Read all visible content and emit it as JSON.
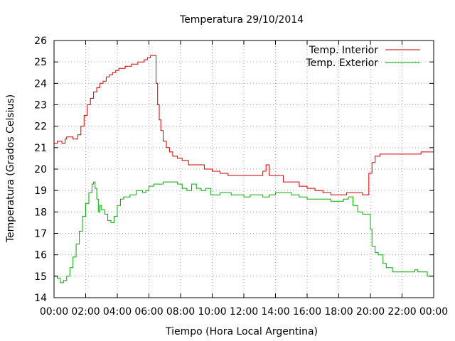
{
  "chart_data": {
    "type": "line",
    "title": "Temperatura 29/10/2014",
    "xlabel": "Tiempo (Hora Local Argentina)",
    "ylabel": "Temperatura (Grados Celsius)",
    "xlim": [
      0,
      24
    ],
    "ylim": [
      14,
      26
    ],
    "x_ticks": [
      "00:00",
      "02:00",
      "04:00",
      "06:00",
      "08:00",
      "10:00",
      "12:00",
      "14:00",
      "16:00",
      "18:00",
      "20:00",
      "22:00",
      "00:00"
    ],
    "y_ticks": [
      "14",
      "15",
      "16",
      "17",
      "18",
      "19",
      "20",
      "21",
      "22",
      "23",
      "24",
      "25",
      "26"
    ],
    "grid": true,
    "legend_position": "top-right",
    "series": [
      {
        "name": "Temp. Interior",
        "color": "#cc0000",
        "x": [
          0,
          0.2,
          0.5,
          0.7,
          0.8,
          1.0,
          1.2,
          1.3,
          1.5,
          1.7,
          1.9,
          2.1,
          2.3,
          2.5,
          2.7,
          2.9,
          3.1,
          3.3,
          3.5,
          3.7,
          3.9,
          4.1,
          4.3,
          4.5,
          4.7,
          4.9,
          5.1,
          5.3,
          5.5,
          5.7,
          5.9,
          6.1,
          6.3,
          6.45,
          6.55,
          6.65,
          6.75,
          6.9,
          7.1,
          7.3,
          7.5,
          7.8,
          8.1,
          8.5,
          9.0,
          9.5,
          10.0,
          10.5,
          11.0,
          11.5,
          12.0,
          12.5,
          13.0,
          13.2,
          13.4,
          13.6,
          14.0,
          14.5,
          15.0,
          15.5,
          16.0,
          16.5,
          17.0,
          17.5,
          18.0,
          18.5,
          19.0,
          19.5,
          19.7,
          19.9,
          20.1,
          20.3,
          20.6,
          21.0,
          22.0,
          23.0,
          23.2,
          24.0
        ],
        "y": [
          21.2,
          21.3,
          21.2,
          21.4,
          21.5,
          21.5,
          21.4,
          21.4,
          21.6,
          22.0,
          22.5,
          23.0,
          23.3,
          23.6,
          23.8,
          24.0,
          24.1,
          24.3,
          24.4,
          24.5,
          24.6,
          24.7,
          24.7,
          24.8,
          24.8,
          24.9,
          24.9,
          25.0,
          25.0,
          25.1,
          25.2,
          25.3,
          25.3,
          24.0,
          23.0,
          22.3,
          21.8,
          21.3,
          21.0,
          20.8,
          20.6,
          20.5,
          20.4,
          20.2,
          20.2,
          20.0,
          19.9,
          19.8,
          19.7,
          19.7,
          19.7,
          19.7,
          19.7,
          19.9,
          20.2,
          19.7,
          19.7,
          19.4,
          19.4,
          19.2,
          19.1,
          19.0,
          18.9,
          18.8,
          18.8,
          18.9,
          18.9,
          18.8,
          18.8,
          19.8,
          20.3,
          20.6,
          20.7,
          20.7,
          20.7,
          20.7,
          20.8,
          20.8
        ]
      },
      {
        "name": "Temp. Exterior",
        "color": "#00aa00",
        "x": [
          0,
          0.2,
          0.4,
          0.6,
          0.8,
          1.0,
          1.2,
          1.4,
          1.6,
          1.8,
          2.0,
          2.2,
          2.4,
          2.5,
          2.6,
          2.7,
          2.8,
          2.9,
          3.0,
          3.2,
          3.4,
          3.6,
          3.8,
          4.0,
          4.2,
          4.4,
          4.6,
          4.8,
          5.0,
          5.2,
          5.4,
          5.6,
          5.8,
          6.0,
          6.3,
          6.6,
          6.9,
          7.2,
          7.5,
          7.8,
          8.1,
          8.4,
          8.7,
          9.0,
          9.3,
          9.6,
          9.9,
          10.2,
          10.5,
          10.8,
          11.2,
          11.6,
          12.0,
          12.4,
          12.8,
          13.2,
          13.6,
          14.0,
          14.5,
          15.0,
          15.5,
          16.0,
          16.5,
          17.0,
          17.5,
          18.0,
          18.3,
          18.6,
          18.9,
          19.2,
          19.5,
          19.8,
          20.0,
          20.1,
          20.3,
          20.5,
          20.8,
          21.0,
          21.4,
          22.0,
          22.4,
          22.8,
          23.0,
          23.3,
          23.6,
          24.0
        ],
        "y": [
          15.0,
          14.9,
          14.7,
          14.8,
          15.0,
          15.4,
          15.9,
          16.5,
          17.1,
          17.8,
          18.4,
          18.9,
          19.3,
          19.4,
          19.1,
          18.6,
          18.0,
          18.3,
          18.1,
          17.9,
          17.6,
          17.5,
          17.8,
          18.3,
          18.6,
          18.7,
          18.7,
          18.8,
          18.8,
          19.0,
          19.0,
          18.9,
          19.0,
          19.2,
          19.3,
          19.3,
          19.4,
          19.4,
          19.4,
          19.3,
          19.1,
          19.0,
          19.3,
          19.1,
          19.0,
          19.1,
          18.8,
          18.8,
          18.9,
          18.9,
          18.8,
          18.8,
          18.7,
          18.8,
          18.8,
          18.7,
          18.8,
          18.9,
          18.9,
          18.8,
          18.7,
          18.6,
          18.6,
          18.6,
          18.5,
          18.5,
          18.6,
          18.7,
          18.3,
          18.0,
          17.9,
          17.9,
          17.2,
          16.4,
          16.1,
          16.0,
          15.6,
          15.4,
          15.2,
          15.2,
          15.2,
          15.3,
          15.2,
          15.2,
          15.0,
          14.4
        ]
      }
    ]
  }
}
